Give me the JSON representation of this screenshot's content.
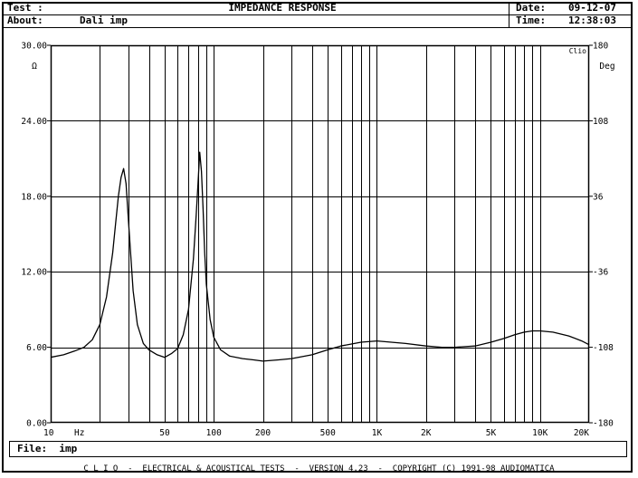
{
  "header": {
    "test_label": "Test :",
    "title": "IMPEDANCE RESPONSE",
    "date_label": "Date:",
    "date_value": "09-12-07",
    "about_label": "About:",
    "about_value": "Dali imp",
    "time_label": "Time:",
    "time_value": "12:38:03"
  },
  "file": {
    "label": "File:",
    "value": "imp"
  },
  "footer": {
    "text": "C L I O  -  ELECTRICAL & ACOUSTICAL TESTS  -  VERSION 4.23  -  COPYRIGHT (C) 1991-98 AUDIOMATICA"
  },
  "chart_data": {
    "type": "line",
    "title": "IMPEDANCE RESPONSE",
    "xlabel": "Hz",
    "ylabel": "Ω",
    "y2label": "Deg",
    "badge": "Clio",
    "x_scale": "log",
    "xlim": [
      10,
      20000
    ],
    "ylim": [
      0,
      30
    ],
    "y2lim": [
      -180,
      180
    ],
    "grid": true,
    "x_ticks": [
      {
        "value": 10,
        "label": "10"
      },
      {
        "value": 50,
        "label": "50"
      },
      {
        "value": 100,
        "label": "100"
      },
      {
        "value": 200,
        "label": "200"
      },
      {
        "value": 500,
        "label": "500"
      },
      {
        "value": 1000,
        "label": "1K"
      },
      {
        "value": 2000,
        "label": "2K"
      },
      {
        "value": 5000,
        "label": "5K"
      },
      {
        "value": 10000,
        "label": "10K"
      },
      {
        "value": 20000,
        "label": "20K"
      }
    ],
    "x_unit_label": "Hz",
    "y_ticks": [
      {
        "value": 0,
        "label": "0.00"
      },
      {
        "value": 6,
        "label": "6.00"
      },
      {
        "value": 12,
        "label": "12.00"
      },
      {
        "value": 18,
        "label": "18.00"
      },
      {
        "value": 24,
        "label": "24.00"
      },
      {
        "value": 30,
        "label": "30.00"
      }
    ],
    "y2_ticks": [
      {
        "value": -180,
        "label": "-180"
      },
      {
        "value": -108,
        "label": "-108"
      },
      {
        "value": -36,
        "label": "-36"
      },
      {
        "value": 36,
        "label": "36"
      },
      {
        "value": 108,
        "label": "108"
      },
      {
        "value": 180,
        "label": "180"
      }
    ],
    "series": [
      {
        "x": [
          10,
          12,
          14,
          16,
          18,
          20,
          22,
          24,
          25,
          26,
          27,
          28,
          29,
          30,
          32,
          34,
          37,
          40,
          45,
          50,
          55,
          60,
          65,
          70,
          75,
          78,
          80,
          82,
          84,
          86,
          88,
          90,
          95,
          100,
          110,
          125,
          150,
          175,
          200,
          250,
          300,
          400,
          500,
          600,
          800,
          1000,
          1500,
          2000,
          2500,
          3000,
          4000,
          5000,
          6000,
          7000,
          8000,
          9000,
          10000,
          12000,
          15000,
          18000,
          20000
        ],
        "y": [
          5.2,
          5.4,
          5.7,
          6.0,
          6.6,
          7.8,
          10.0,
          13.5,
          15.8,
          18.0,
          19.5,
          20.2,
          19.0,
          16.0,
          10.5,
          7.8,
          6.3,
          5.8,
          5.4,
          5.2,
          5.5,
          5.9,
          7.0,
          9.0,
          13.0,
          16.5,
          19.0,
          21.5,
          20.0,
          17.0,
          13.5,
          11.0,
          8.2,
          6.8,
          5.8,
          5.3,
          5.1,
          5.0,
          4.9,
          5.0,
          5.1,
          5.4,
          5.8,
          6.1,
          6.4,
          6.5,
          6.3,
          6.1,
          6.0,
          6.0,
          6.1,
          6.4,
          6.7,
          7.0,
          7.2,
          7.3,
          7.3,
          7.2,
          6.9,
          6.5,
          6.2
        ]
      }
    ]
  }
}
